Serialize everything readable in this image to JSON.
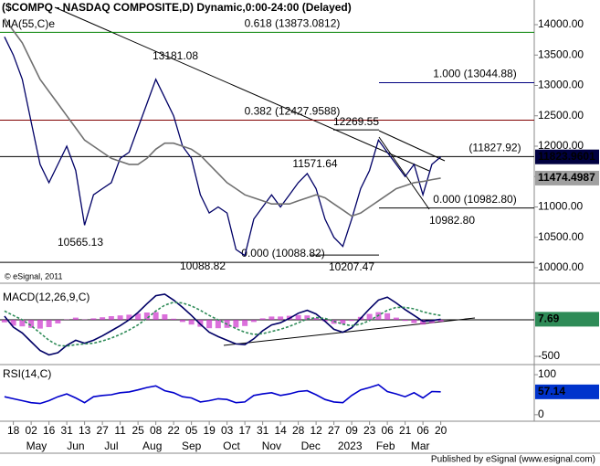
{
  "chart_data": [
    {
      "type": "line",
      "title": "($COMPQ - NASDAQ COMPOSITE,D) Dynamic,0:00-24:00 (Delayed)",
      "copyright": "© eSignal, 2011",
      "x": [
        -1,
        0,
        1,
        2,
        3,
        4,
        5,
        6,
        7,
        8,
        9,
        10,
        11,
        12,
        13,
        14,
        15,
        16,
        17,
        18,
        19,
        20,
        21,
        22,
        23,
        24,
        25,
        26,
        27,
        28,
        29,
        30,
        31,
        32,
        33,
        34,
        35,
        36,
        37,
        38,
        39,
        40,
        41,
        42,
        43,
        44,
        45,
        46,
        47,
        48
      ],
      "xlim": [
        -1.5,
        58.5
      ],
      "ylim": [
        9744,
        14406
      ],
      "yticks": [
        {
          "value": 14000,
          "label": "14000.00"
        },
        {
          "value": 13500,
          "label": "13500.00"
        },
        {
          "value": 13000,
          "label": "13000.00"
        },
        {
          "value": 12500,
          "label": "12500.00"
        },
        {
          "value": 12000,
          "label": "12000.00"
        },
        {
          "value": 11500,
          "label": "11500.00"
        },
        {
          "value": 11000,
          "label": "11000.00"
        },
        {
          "value": 10500,
          "label": "10500.00"
        },
        {
          "value": 10000,
          "label": "10000.00"
        }
      ],
      "series": [
        {
          "color": "#000066",
          "values": [
            13800,
            13500,
            13100,
            12400,
            11700,
            11400,
            11700,
            12000,
            11600,
            10700,
            11200,
            11300,
            11400,
            11800,
            11900,
            12300,
            12700,
            13100,
            12800,
            12500,
            12000,
            11800,
            11200,
            10900,
            11000,
            10900,
            10300,
            10200,
            10800,
            11000,
            11200,
            11000,
            11200,
            11400,
            11550,
            11300,
            10800,
            10500,
            10350,
            10800,
            11300,
            11600,
            12100,
            11900,
            11700,
            11500,
            11700,
            11200,
            11700,
            11823.9601
          ]
        },
        {
          "name": "MA(55,C)e",
          "color": "#707070",
          "values": [
            14100,
            13900,
            13700,
            13400,
            13100,
            12900,
            12700,
            12500,
            12300,
            12100,
            12000,
            11900,
            11800,
            11750,
            11700,
            11700,
            11800,
            11950,
            12050,
            12050,
            12000,
            11950,
            11850,
            11700,
            11550,
            11400,
            11300,
            11200,
            11150,
            11100,
            11050,
            11050,
            11050,
            11100,
            11150,
            11200,
            11150,
            11050,
            10950,
            10850,
            10900,
            11000,
            11100,
            11200,
            11300,
            11350,
            11400,
            11420,
            11450,
            11474.4987
          ]
        }
      ],
      "levels": [
        {
          "label": "0.618 (13873.0812)",
          "value": 13873.0812,
          "color": "#008000"
        },
        {
          "label": "1.000 (13044.88)",
          "value": 13044.88,
          "color": "#000080"
        },
        {
          "label": "0.382 (12427.9588)",
          "value": 12427.9588,
          "color": "#800000"
        },
        {
          "label": "(11827.92)",
          "value": 11827.92,
          "color": "#000000"
        },
        {
          "label": "0.000 (10982.80)",
          "value": 10982.8,
          "color": "#000000"
        },
        {
          "label": "0.000 (10088.82)",
          "value": 10088.82,
          "color": "#000000"
        }
      ],
      "annotations": [
        {
          "label": "13181.08",
          "value": 13181.08
        },
        {
          "label": "12269.55",
          "value": 12269.55
        },
        {
          "label": "11571.64",
          "value": 11571.64
        },
        {
          "label": "10565.13",
          "value": 10565.13
        },
        {
          "label": "10088.82",
          "value": 10088.82
        },
        {
          "label": "10207.47",
          "value": 10207.47
        },
        {
          "label": "10982.80",
          "value": 10982.8
        }
      ]
    },
    {
      "type": "line",
      "title": "MACD(12,26,9,C)",
      "x": [
        -1,
        0,
        1,
        2,
        3,
        4,
        5,
        6,
        7,
        8,
        9,
        10,
        11,
        12,
        13,
        14,
        15,
        16,
        17,
        18,
        19,
        20,
        21,
        22,
        23,
        24,
        25,
        26,
        27,
        28,
        29,
        30,
        31,
        32,
        33,
        34,
        35,
        36,
        37,
        38,
        39,
        40,
        41,
        42,
        43,
        44,
        45,
        46,
        47,
        48
      ],
      "xlim": [
        -1.5,
        58.5
      ],
      "ylim": [
        -600,
        500
      ],
      "yticks": [
        -500
      ],
      "series": [
        {
          "type": "bar",
          "color": "#cc33cc",
          "values": [
            -35,
            -80,
            -90,
            -110,
            -120,
            -100,
            -50,
            5,
            30,
            5,
            20,
            35,
            50,
            60,
            70,
            85,
            100,
            105,
            75,
            15,
            -30,
            -65,
            -95,
            -115,
            -115,
            -110,
            -105,
            -85,
            -30,
            20,
            45,
            45,
            55,
            65,
            60,
            25,
            -20,
            -55,
            -55,
            -15,
            40,
            80,
            105,
            90,
            30,
            -15,
            -45,
            -65,
            -45,
            -26
          ]
        },
        {
          "color": "#000066",
          "values": [
            50,
            -100,
            -180,
            -300,
            -420,
            -480,
            -450,
            -350,
            -280,
            -320,
            -280,
            -220,
            -150,
            -80,
            0,
            100,
            220,
            330,
            350,
            270,
            170,
            60,
            -60,
            -170,
            -230,
            -280,
            -330,
            -340,
            -260,
            -150,
            -70,
            -40,
            20,
            90,
            130,
            80,
            -20,
            -130,
            -170,
            -110,
            20,
            150,
            270,
            310,
            230,
            140,
            60,
            -20,
            -10,
            7.69
          ]
        },
        {
          "color": "#2e8b57",
          "dash": true,
          "values": [
            120,
            60,
            0,
            -80,
            -180,
            -280,
            -350,
            -360,
            -340,
            -330,
            -320,
            -290,
            -250,
            -200,
            -140,
            -70,
            20,
            120,
            200,
            240,
            230,
            190,
            130,
            60,
            0,
            -60,
            -120,
            -170,
            -200,
            -190,
            -160,
            -130,
            -90,
            -40,
            10,
            30,
            20,
            -20,
            -60,
            -80,
            -60,
            -10,
            60,
            130,
            170,
            170,
            150,
            110,
            80,
            60
          ]
        }
      ]
    },
    {
      "type": "line",
      "title": "RSI(14,C)",
      "x": [
        -1,
        0,
        1,
        2,
        3,
        4,
        5,
        6,
        7,
        8,
        9,
        10,
        11,
        12,
        13,
        14,
        15,
        16,
        17,
        18,
        19,
        20,
        21,
        22,
        23,
        24,
        25,
        26,
        27,
        28,
        29,
        30,
        31,
        32,
        33,
        34,
        35,
        36,
        37,
        38,
        39,
        40,
        41,
        42,
        43,
        44,
        45,
        46,
        47,
        48
      ],
      "xlim": [
        -1.5,
        58.5
      ],
      "ylim": [
        -14,
        123
      ],
      "yticks": [
        100,
        0
      ],
      "xticks": [
        {
          "value": 0,
          "label": "18"
        },
        {
          "value": 2,
          "label": "02"
        },
        {
          "value": 4,
          "label": "16"
        },
        {
          "value": 6,
          "label": "31"
        },
        {
          "value": 8,
          "label": "13"
        },
        {
          "value": 10,
          "label": "27"
        },
        {
          "value": 12,
          "label": "11"
        },
        {
          "value": 14,
          "label": "25"
        },
        {
          "value": 16,
          "label": "08"
        },
        {
          "value": 18,
          "label": "22"
        },
        {
          "value": 20,
          "label": "05"
        },
        {
          "value": 22,
          "label": "19"
        },
        {
          "value": 24,
          "label": "03"
        },
        {
          "value": 26,
          "label": "17"
        },
        {
          "value": 28,
          "label": "31"
        },
        {
          "value": 30,
          "label": "14"
        },
        {
          "value": 32,
          "label": "28"
        },
        {
          "value": 34,
          "label": "12"
        },
        {
          "value": 36,
          "label": "27"
        },
        {
          "value": 38,
          "label": "09"
        },
        {
          "value": 40,
          "label": "23"
        },
        {
          "value": 42,
          "label": "06"
        },
        {
          "value": 44,
          "label": "21"
        },
        {
          "value": 46,
          "label": "06"
        },
        {
          "value": 48,
          "label": "20"
        }
      ],
      "month_ticks": [
        {
          "value": 2.6,
          "label": "May"
        },
        {
          "value": 7,
          "label": "Jun"
        },
        {
          "value": 11,
          "label": "Jul"
        },
        {
          "value": 15.6,
          "label": "Aug"
        },
        {
          "value": 20,
          "label": "Sep"
        },
        {
          "value": 24.5,
          "label": "Oct"
        },
        {
          "value": 29,
          "label": "Nov"
        },
        {
          "value": 33.4,
          "label": "Dec"
        },
        {
          "value": 37.8,
          "label": "2023"
        },
        {
          "value": 41.8,
          "label": "Feb"
        },
        {
          "value": 45.7,
          "label": "Mar"
        }
      ],
      "series": [
        {
          "color": "#0000cc",
          "values": [
            45,
            40,
            35,
            30,
            28,
            35,
            45,
            52,
            42,
            30,
            45,
            48,
            50,
            55,
            57,
            62,
            68,
            72,
            60,
            55,
            45,
            42,
            32,
            35,
            40,
            38,
            30,
            32,
            48,
            52,
            55,
            48,
            52,
            58,
            60,
            50,
            38,
            32,
            30,
            48,
            62,
            68,
            75,
            58,
            52,
            45,
            55,
            42,
            58,
            57.14
          ]
        }
      ]
    },
    {
      "type": "footer",
      "text": "Published by eSignal (www.esignal.com)"
    }
  ]
}
